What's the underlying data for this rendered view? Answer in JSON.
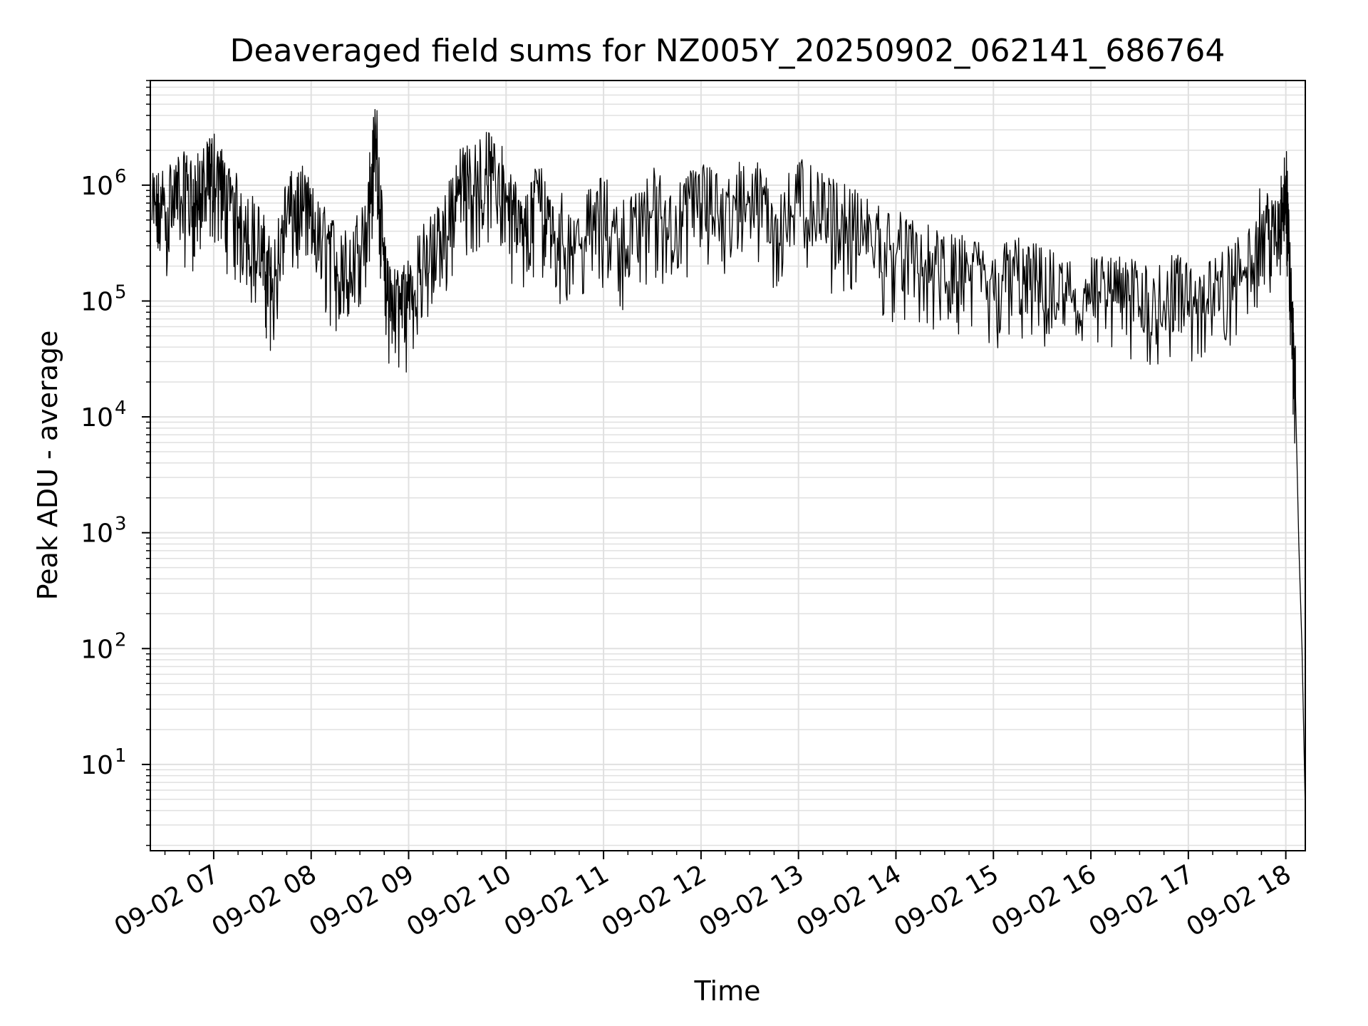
{
  "chart_data": {
    "type": "line",
    "title": "Deaveraged field sums for NZ005Y_20250902_062141_686764",
    "xlabel": "Time",
    "ylabel": "Peak ADU - average",
    "yscale": "log",
    "ylim": [
      1.8,
      8000000
    ],
    "xlim": [
      "2025-09-02 06:21",
      "2025-09-02 18:12"
    ],
    "grid": true,
    "grid_color": "#e0e0e0",
    "line_color": "#000000",
    "x_ticks": [
      "09-02 07",
      "09-02 08",
      "09-02 09",
      "09-02 10",
      "09-02 11",
      "09-02 12",
      "09-02 13",
      "09-02 14",
      "09-02 15",
      "09-02 16",
      "09-02 17",
      "09-02 18"
    ],
    "y_ticks": [
      {
        "base": "10",
        "exp": "1",
        "value": 10
      },
      {
        "base": "10",
        "exp": "2",
        "value": 100
      },
      {
        "base": "10",
        "exp": "3",
        "value": 1000
      },
      {
        "base": "10",
        "exp": "4",
        "value": 10000
      },
      {
        "base": "10",
        "exp": "5",
        "value": 100000
      },
      {
        "base": "10",
        "exp": "6",
        "value": 1000000
      }
    ],
    "series": [
      {
        "x": [
          "2025-09-02 06:22",
          "2025-09-02 06:30",
          "2025-09-02 06:40",
          "2025-09-02 06:48",
          "2025-09-02 06:55",
          "2025-09-02 07:00",
          "2025-09-02 07:10",
          "2025-09-02 07:20",
          "2025-09-02 07:30",
          "2025-09-02 07:36",
          "2025-09-02 07:45",
          "2025-09-02 07:55",
          "2025-09-02 08:05",
          "2025-09-02 08:15",
          "2025-09-02 08:25",
          "2025-09-02 08:35",
          "2025-09-02 08:40",
          "2025-09-02 08:45",
          "2025-09-02 08:50",
          "2025-09-02 09:00",
          "2025-09-02 09:10",
          "2025-09-02 09:20",
          "2025-09-02 09:30",
          "2025-09-02 09:40",
          "2025-09-02 09:50",
          "2025-09-02 10:00",
          "2025-09-02 10:10",
          "2025-09-02 10:20",
          "2025-09-02 10:30",
          "2025-09-02 10:45",
          "2025-09-02 11:00",
          "2025-09-02 11:15",
          "2025-09-02 11:30",
          "2025-09-02 11:45",
          "2025-09-02 12:00",
          "2025-09-02 12:15",
          "2025-09-02 12:30",
          "2025-09-02 12:45",
          "2025-09-02 13:00",
          "2025-09-02 13:15",
          "2025-09-02 13:30",
          "2025-09-02 13:45",
          "2025-09-02 14:00",
          "2025-09-02 14:15",
          "2025-09-02 14:30",
          "2025-09-02 14:45",
          "2025-09-02 15:00",
          "2025-09-02 15:15",
          "2025-09-02 15:30",
          "2025-09-02 15:45",
          "2025-09-02 16:00",
          "2025-09-02 16:15",
          "2025-09-02 16:30",
          "2025-09-02 16:45",
          "2025-09-02 17:00",
          "2025-09-02 17:15",
          "2025-09-02 17:30",
          "2025-09-02 17:45",
          "2025-09-02 17:55",
          "2025-09-02 18:00",
          "2025-09-02 18:03",
          "2025-09-02 18:06",
          "2025-09-02 18:08",
          "2025-09-02 18:10",
          "2025-09-02 18:12"
        ],
        "y": [
          500000,
          600000,
          800000,
          700000,
          900000,
          1200000,
          600000,
          400000,
          250000,
          120000,
          500000,
          600000,
          300000,
          200000,
          150000,
          600000,
          2500000,
          150000,
          80000,
          100000,
          200000,
          300000,
          800000,
          1000000,
          1200000,
          800000,
          300000,
          700000,
          400000,
          300000,
          500000,
          300000,
          600000,
          400000,
          700000,
          500000,
          800000,
          400000,
          700000,
          500000,
          400000,
          300000,
          250000,
          200000,
          150000,
          150000,
          120000,
          150000,
          120000,
          100000,
          100000,
          100000,
          90000,
          100000,
          100000,
          90000,
          150000,
          400000,
          300000,
          1200000,
          100000,
          15000,
          800,
          100,
          4
        ]
      }
    ]
  }
}
